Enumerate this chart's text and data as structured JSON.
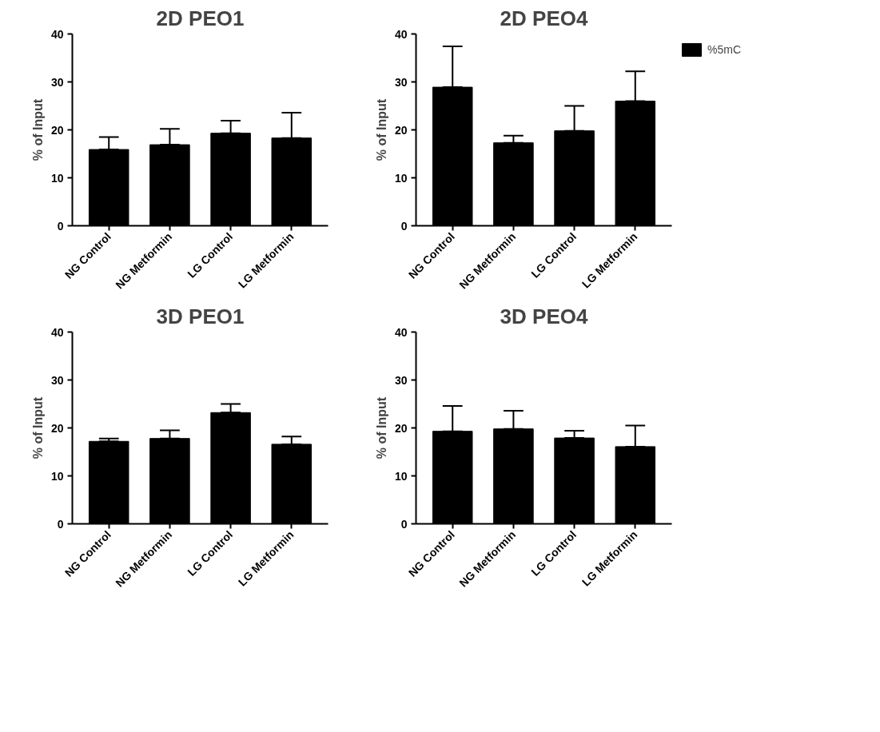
{
  "chart_data": [
    {
      "type": "bar",
      "title": "2D PEO1",
      "ylabel": "% of Input",
      "categories": [
        "NG Control",
        "NG Metformin",
        "LG Control",
        "LG Metformin"
      ],
      "series": [
        {
          "color": "#000000",
          "values": [
            15.9,
            16.9,
            19.3,
            18.3
          ],
          "errors": [
            [
              15.9,
              18.5
            ],
            [
              16.9,
              20.2
            ],
            [
              19.3,
              21.9
            ],
            [
              18.3,
              23.6
            ]
          ]
        }
      ],
      "ylim": [
        0,
        40
      ],
      "yticks": [
        0,
        10,
        20,
        30,
        40
      ],
      "grid": false
    },
    {
      "type": "bar",
      "title": "2D PEO4",
      "ylabel": "% of Input",
      "categories": [
        "NG Control",
        "NG Metformin",
        "LG Control",
        "LG Metformin"
      ],
      "series": [
        {
          "name": "%5mC",
          "color": "#000000",
          "values": [
            28.9,
            17.3,
            19.8,
            26.0
          ],
          "errors": [
            [
              28.9,
              37.4
            ],
            [
              17.3,
              18.8
            ],
            [
              19.8,
              25.0
            ],
            [
              26.0,
              32.2
            ]
          ]
        }
      ],
      "ylim": [
        0,
        40
      ],
      "yticks": [
        0,
        10,
        20,
        30,
        40
      ],
      "grid": false,
      "legend": "top right"
    },
    {
      "type": "bar",
      "title": "3D PEO1",
      "ylabel": "% of Input",
      "categories": [
        "NG Control",
        "NG Metformin",
        "LG Control",
        "LG Metformin"
      ],
      "series": [
        {
          "color": "#000000",
          "values": [
            17.2,
            17.8,
            23.2,
            16.6
          ],
          "errors": [
            [
              17.2,
              17.8
            ],
            [
              17.8,
              19.5
            ],
            [
              23.2,
              25.0
            ],
            [
              16.6,
              18.2
            ]
          ]
        }
      ],
      "ylim": [
        0,
        40
      ],
      "yticks": [
        0,
        10,
        20,
        30,
        40
      ],
      "grid": false
    },
    {
      "type": "bar",
      "title": "3D PEO4",
      "ylabel": "% of Input",
      "categories": [
        "NG Control",
        "NG Metformin",
        "LG Control",
        "LG Metformin"
      ],
      "series": [
        {
          "color": "#000000",
          "values": [
            19.3,
            19.8,
            17.9,
            16.1
          ],
          "errors": [
            [
              19.3,
              24.6
            ],
            [
              19.8,
              23.6
            ],
            [
              17.9,
              19.4
            ],
            [
              16.1,
              20.5
            ]
          ]
        }
      ],
      "ylim": [
        0,
        40
      ],
      "yticks": [
        0,
        10,
        20,
        30,
        40
      ],
      "grid": false
    }
  ]
}
